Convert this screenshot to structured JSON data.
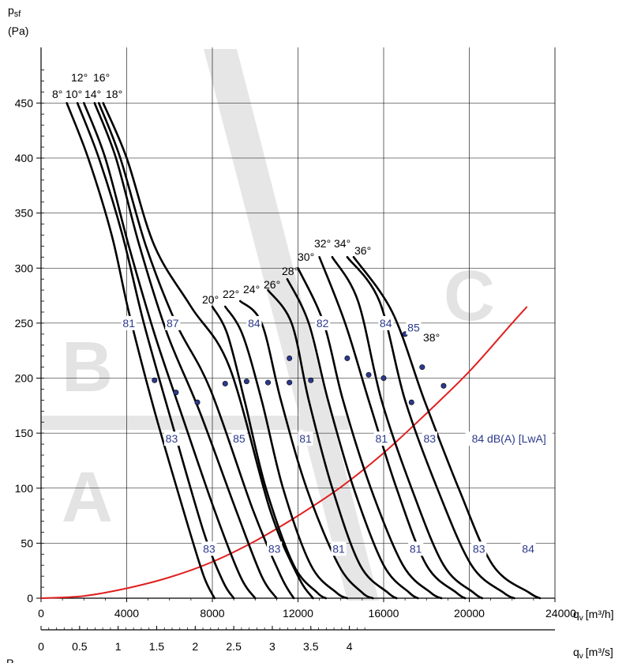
{
  "chart_data": {
    "type": "line",
    "y_axis": {
      "title": "p",
      "title_sub": "sf",
      "unit": "(Pa)",
      "ticks": [
        0,
        50,
        100,
        150,
        200,
        250,
        300,
        350,
        400,
        450
      ],
      "range": [
        0,
        490
      ]
    },
    "x_axis": {
      "unit": "q",
      "unit_sub": "v",
      "unit_rest": "[m³/h]",
      "ticks": [
        "0",
        "4000",
        "8000",
        "12000",
        "16000",
        "20000",
        "24000"
      ],
      "range": [
        0,
        24000
      ]
    },
    "x_axis_2": {
      "unit": "q",
      "unit_sub": "v",
      "unit_rest": "[m³/s]",
      "ticks": [
        "0",
        "0.5",
        "1",
        "1.5",
        "2",
        "2.5",
        "3",
        "3.5",
        "4"
      ]
    },
    "bottom_cut_label": "P",
    "zones": [
      "A",
      "B",
      "C"
    ],
    "blade_angle_labels": [
      "8°",
      "10°",
      "12°",
      "14°",
      "16°",
      "18°",
      "20°",
      "22°",
      "24°",
      "26°",
      "28°",
      "30°",
      "32°",
      "34°",
      "36°",
      "38°"
    ],
    "noise_labels": [
      {
        "text": "81",
        "q": 4100,
        "p": 250
      },
      {
        "text": "87",
        "q": 6150,
        "p": 250
      },
      {
        "text": "84",
        "q": 9950,
        "p": 250
      },
      {
        "text": "82",
        "q": 13150,
        "p": 250
      },
      {
        "text": "84",
        "q": 16100,
        "p": 250
      },
      {
        "text": "85",
        "q": 17400,
        "p": 246
      },
      {
        "text": "83",
        "q": 6100,
        "p": 145
      },
      {
        "text": "85",
        "q": 9250,
        "p": 145
      },
      {
        "text": "81",
        "q": 12350,
        "p": 145
      },
      {
        "text": "81",
        "q": 15900,
        "p": 145
      },
      {
        "text": "83",
        "q": 18150,
        "p": 145
      },
      {
        "text": "84 dB(A) [LwA]",
        "q": 21850,
        "p": 145
      },
      {
        "text": "83",
        "q": 7850,
        "p": 45
      },
      {
        "text": "83",
        "q": 10900,
        "p": 45
      },
      {
        "text": "81",
        "q": 13900,
        "p": 45
      },
      {
        "text": "81",
        "q": 17500,
        "p": 45
      },
      {
        "text": "83",
        "q": 20450,
        "p": 45
      },
      {
        "text": "84",
        "q": 22750,
        "p": 45
      }
    ],
    "system_curve": {
      "q": [
        0,
        2000,
        4000,
        6000,
        8000,
        10000,
        12000,
        14000,
        16000,
        18000,
        20000,
        22000,
        22700
      ],
      "p": [
        0,
        2,
        9,
        19,
        33,
        52,
        75,
        101,
        132,
        168,
        206,
        250,
        265
      ]
    },
    "fan_curves": [
      {
        "label": "8°",
        "q": [
          1200,
          2200,
          3300,
          4100,
          5300,
          6800,
          7600,
          8100
        ],
        "p": [
          450,
          400,
          330,
          260,
          170,
          70,
          20,
          0
        ]
      },
      {
        "label": "10°",
        "q": [
          1700,
          2700,
          3800,
          4800,
          6100,
          7600,
          8500,
          9000
        ],
        "p": [
          450,
          400,
          330,
          250,
          160,
          60,
          15,
          0
        ]
      },
      {
        "label": "12°",
        "q": [
          2000,
          3000,
          4100,
          5300,
          6600,
          8100,
          9300,
          10000
        ],
        "p": [
          450,
          400,
          320,
          240,
          165,
          80,
          20,
          0
        ]
      },
      {
        "label": "14°",
        "q": [
          2500,
          3500,
          4600,
          5900,
          7400,
          9200,
          10300,
          11000
        ],
        "p": [
          450,
          400,
          320,
          240,
          170,
          75,
          20,
          0
        ]
      },
      {
        "label": "16°",
        "q": [
          2700,
          3700,
          4900,
          6300,
          7900,
          9900,
          11200,
          11800
        ],
        "p": [
          450,
          400,
          320,
          250,
          190,
          80,
          20,
          0
        ]
      },
      {
        "label": "18°",
        "q": [
          2900,
          4000,
          5300,
          7000,
          8800,
          10700,
          12000,
          12700
        ],
        "p": [
          450,
          400,
          320,
          265,
          210,
          80,
          20,
          0
        ]
      },
      {
        "label": "20°",
        "q": [
          8000,
          8700,
          9500,
          10500,
          11800,
          12900,
          13300
        ],
        "p": [
          265,
          240,
          180,
          100,
          30,
          5,
          0
        ]
      },
      {
        "label": "22°",
        "q": [
          8600,
          9400,
          10300,
          11300,
          12600,
          13800,
          14300
        ],
        "p": [
          265,
          240,
          180,
          100,
          30,
          5,
          0
        ]
      },
      {
        "label": "24°",
        "q": [
          9300,
          10300,
          11200,
          12400,
          13900,
          15000,
          15500
        ],
        "p": [
          270,
          250,
          180,
          100,
          30,
          5,
          0
        ]
      },
      {
        "label": "26°",
        "q": [
          10600,
          11700,
          12500,
          13600,
          14900,
          16200,
          16600
        ],
        "p": [
          280,
          250,
          180,
          100,
          30,
          5,
          0
        ]
      },
      {
        "label": "28°",
        "q": [
          11500,
          12500,
          13400,
          14600,
          16000,
          17200,
          17600
        ],
        "p": [
          290,
          250,
          180,
          100,
          30,
          5,
          0
        ]
      },
      {
        "label": "30°",
        "q": [
          12000,
          13200,
          14100,
          15400,
          16900,
          18200,
          18700
        ],
        "p": [
          300,
          250,
          180,
          100,
          30,
          5,
          0
        ]
      },
      {
        "label": "32°",
        "q": [
          13000,
          14200,
          15300,
          16600,
          18000,
          19400,
          19800
        ],
        "p": [
          310,
          250,
          180,
          100,
          30,
          5,
          0
        ]
      },
      {
        "label": "34°",
        "q": [
          13600,
          14800,
          15900,
          17300,
          18800,
          20200,
          20600
        ],
        "p": [
          310,
          270,
          180,
          100,
          30,
          5,
          0
        ]
      },
      {
        "label": "36°",
        "q": [
          14300,
          15800,
          17000,
          18500,
          20100,
          21600,
          22100
        ],
        "p": [
          310,
          270,
          180,
          100,
          30,
          5,
          0
        ]
      },
      {
        "label": "38°",
        "q": [
          14600,
          16400,
          17900,
          19500,
          21100,
          22800,
          23300
        ],
        "p": [
          310,
          260,
          180,
          100,
          30,
          5,
          0
        ]
      }
    ],
    "markers": [
      {
        "q": 5300,
        "p": 198
      },
      {
        "q": 6300,
        "p": 187
      },
      {
        "q": 7300,
        "p": 178
      },
      {
        "q": 8600,
        "p": 195
      },
      {
        "q": 9600,
        "p": 197
      },
      {
        "q": 10600,
        "p": 196
      },
      {
        "q": 11600,
        "p": 218
      },
      {
        "q": 11600,
        "p": 196
      },
      {
        "q": 12600,
        "p": 198
      },
      {
        "q": 14300,
        "p": 218
      },
      {
        "q": 15300,
        "p": 203
      },
      {
        "q": 16000,
        "p": 200
      },
      {
        "q": 17000,
        "p": 240
      },
      {
        "q": 17300,
        "p": 178
      },
      {
        "q": 17800,
        "p": 210
      },
      {
        "q": 18800,
        "p": 193
      }
    ],
    "colors": {
      "fan_curve": "#000000",
      "system_curve": "#e02020",
      "noise_label": "#2b3a8c",
      "marker": "#2b3a8c",
      "grid": "#000000",
      "zone_letter": "#e3e3e3"
    },
    "grid": true
  }
}
